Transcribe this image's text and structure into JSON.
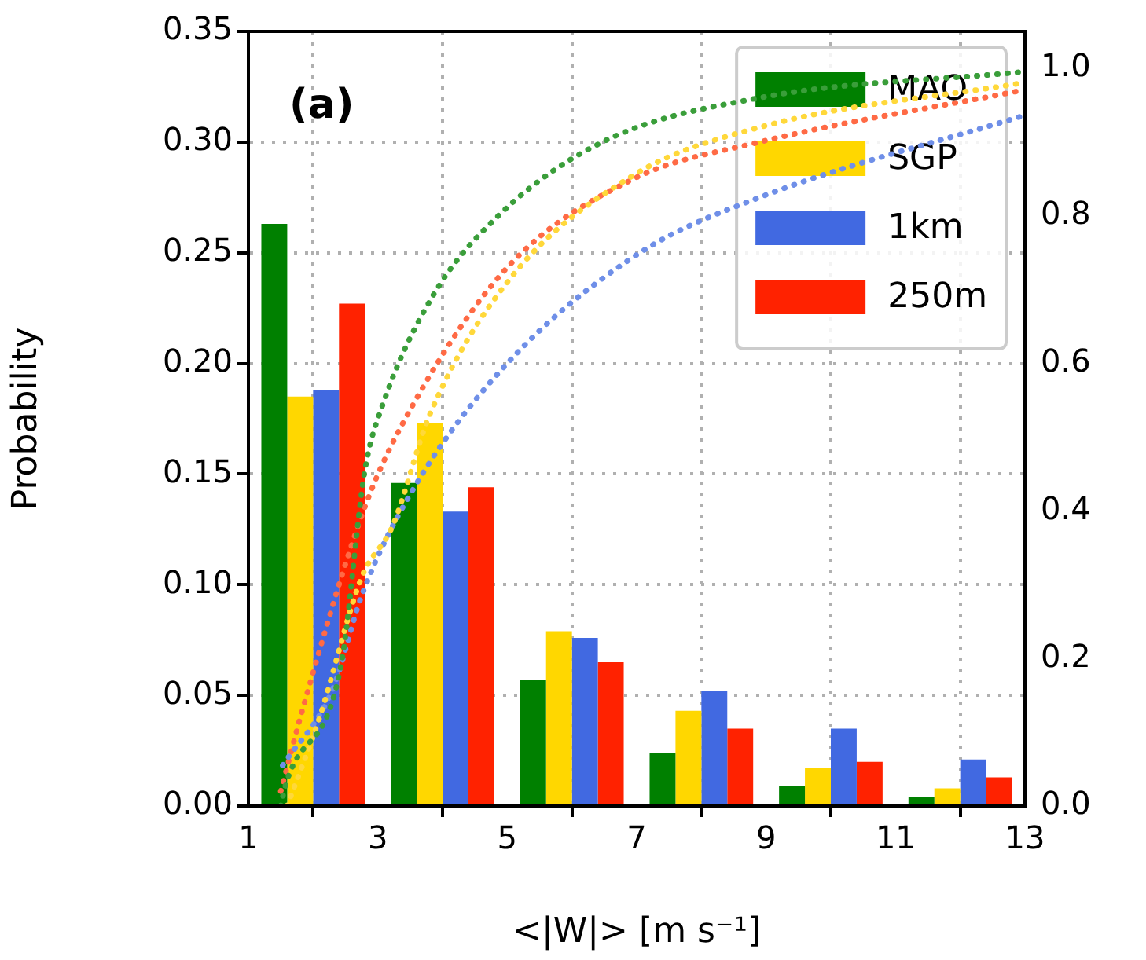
{
  "chart_data": {
    "type": "bar",
    "xlabel": "<|W|> [m s⁻¹]",
    "ylabel": "Probability",
    "annotations": [
      "(a)"
    ],
    "xlim": [
      1,
      13
    ],
    "xticks": [
      1,
      3,
      5,
      7,
      9,
      11,
      13
    ],
    "ylim": [
      0,
      0.35
    ],
    "yticks": [
      {
        "value": 0,
        "label": "0.00"
      },
      0.05,
      {
        "value": 0.1,
        "label": "0.10"
      },
      0.15,
      {
        "value": 0.2,
        "label": "0.20"
      },
      0.25,
      {
        "value": 0.3,
        "label": "0.30"
      },
      0.35
    ],
    "y2lim": [
      0,
      1.05
    ],
    "y2ticks": [
      {
        "value": 0,
        "label": "0.0"
      },
      0.2,
      0.4,
      0.6,
      0.8,
      {
        "value": 1,
        "label": "1.0"
      }
    ],
    "x": [
      2,
      4,
      6,
      8,
      10,
      12
    ],
    "grid": true,
    "legend": "top right",
    "series": [
      {
        "name": "MAO",
        "color": "#008000",
        "values": [
          0.263,
          0.146,
          0.057,
          0.024,
          0.009,
          0.004
        ]
      },
      {
        "name": "SGP",
        "color": "#ffd700",
        "values": [
          0.185,
          0.173,
          0.079,
          0.043,
          0.017,
          0.008
        ]
      },
      {
        "name": "1km",
        "color": "#4169e1",
        "values": [
          0.188,
          0.133,
          0.076,
          0.052,
          0.035,
          0.021
        ]
      },
      {
        "name": "250m",
        "color": "#ff2200",
        "values": [
          0.227,
          0.144,
          0.065,
          0.035,
          0.02,
          0.013
        ]
      },
      {
        "type": "line",
        "axis": "y2",
        "line_style": "dotted",
        "color": "#3a9e3a",
        "x": [
          1.5,
          1.58,
          2.43,
          2.8,
          3.06,
          3.84,
          4.86,
          6.47,
          8.9,
          12.95
        ],
        "values": [
          0.0,
          0.03,
          0.19,
          0.455,
          0.54,
          0.69,
          0.8,
          0.9,
          0.96,
          0.995
        ]
      },
      {
        "type": "line",
        "axis": "y2",
        "line_style": "dotted",
        "color": "#ffd83a",
        "x": [
          1.6,
          2.1,
          2.75,
          3.23,
          3.8,
          5.0,
          6.95,
          8.9,
          12.95
        ],
        "values": [
          0.0,
          0.12,
          0.31,
          0.38,
          0.53,
          0.71,
          0.855,
          0.92,
          0.98
        ]
      },
      {
        "type": "line",
        "axis": "y2",
        "line_style": "dotted",
        "color": "#6f8fe8",
        "x": [
          1.53,
          2.31,
          2.75,
          3.55,
          5.0,
          7.05,
          8.9,
          12.95
        ],
        "values": [
          0.055,
          0.16,
          0.285,
          0.43,
          0.6,
          0.75,
          0.825,
          0.935
        ]
      },
      {
        "type": "line",
        "axis": "y2",
        "line_style": "dotted",
        "color": "#ff6a45",
        "x": [
          1.5,
          1.85,
          2.82,
          3.55,
          5.0,
          6.95,
          8.9,
          12.95
        ],
        "values": [
          0.02,
          0.135,
          0.41,
          0.545,
          0.73,
          0.85,
          0.9,
          0.97
        ]
      }
    ]
  }
}
